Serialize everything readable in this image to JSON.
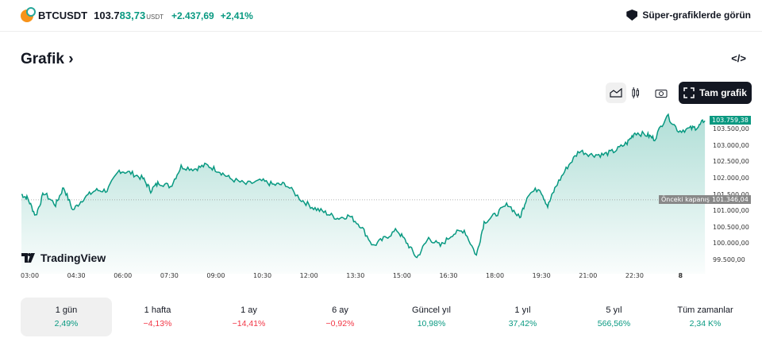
{
  "header": {
    "symbol": "BTCUSDT",
    "price_prefix": "103.7",
    "price_suffix": "83,73",
    "currency": "USDT",
    "change_abs": "+2.437,69",
    "change_pct": "+2,41%",
    "super_charts": "Süper-grafiklerde görün"
  },
  "section": {
    "title": "Grafik",
    "chevron": "›",
    "embed": "</>"
  },
  "toolbar": {
    "full_chart": "Tam grafik"
  },
  "chart_data": {
    "type": "area",
    "color": "#089981",
    "x_ticks": [
      "03:00",
      "04:30",
      "06:00",
      "07:30",
      "09:00",
      "10:30",
      "12:00",
      "13:30",
      "15:00",
      "16:30",
      "18:00",
      "19:30",
      "21:00",
      "22:30",
      "8"
    ],
    "y_ticks": [
      "103.500,00",
      "103.000,00",
      "102.500,00",
      "102.000,00",
      "101.500,00",
      "101.000,00",
      "100.500,00",
      "100.000,00",
      "99.500,00"
    ],
    "y_tick_values": [
      103500,
      103000,
      102500,
      102000,
      101500,
      101000,
      100500,
      100000,
      99500
    ],
    "ylim": [
      99350,
      104000
    ],
    "last_price_label": "103.759,38",
    "last_price": 103759.38,
    "prev_close_label": "Önceki kapanış",
    "prev_close_value": "101.346,04",
    "prev_close": 101346.04,
    "hours_since_0300": [
      -0.23,
      -0.03,
      0.23,
      0.49,
      0.87,
      1.13,
      1.43,
      1.77,
      2.15,
      2.53,
      2.92,
      3.3,
      3.69,
      3.94,
      4.2,
      4.58,
      4.92,
      5.35,
      5.73,
      6.12,
      6.5,
      7.01,
      7.52,
      7.91,
      8.29,
      8.8,
      9.19,
      9.57,
      9.96,
      10.34,
      10.72,
      11.11,
      11.49,
      11.88,
      12.18,
      12.52,
      12.9,
      13.28,
      13.67,
      14.05,
      14.44,
      14.69,
      15.08,
      15.46,
      15.84,
      16.1,
      16.48,
      16.74,
      17.0,
      17.38,
      17.76,
      18.15,
      18.53,
      18.91,
      19.3,
      19.55,
      19.94,
      20.19,
      20.58,
      20.96,
      21.35,
      21.6,
      21.81
    ],
    "prices": [
      101512,
      101391,
      100858,
      101561,
      101197,
      101730,
      101027,
      101391,
      101634,
      101634,
      102240,
      102167,
      101997,
      101634,
      101876,
      101755,
      102361,
      102288,
      102409,
      102240,
      101997,
      101827,
      101924,
      101803,
      101827,
      101343,
      101100,
      100955,
      100785,
      100858,
      100543,
      99937,
      100179,
      100421,
      100058,
      99573,
      100179,
      99937,
      100300,
      100421,
      99646,
      100664,
      100906,
      101221,
      100785,
      101512,
      101706,
      101149,
      101755,
      102361,
      102846,
      102724,
      102724,
      102846,
      103088,
      103403,
      103330,
      103209,
      103937,
      103452,
      103524,
      103573,
      103815
    ]
  },
  "branding": "TradingView",
  "periods": [
    {
      "label": "1 gün",
      "value": "2,49%",
      "dir": "pos"
    },
    {
      "label": "1 hafta",
      "value": "−4,13%",
      "dir": "neg"
    },
    {
      "label": "1 ay",
      "value": "−14,41%",
      "dir": "neg"
    },
    {
      "label": "6 ay",
      "value": "−0,92%",
      "dir": "neg"
    },
    {
      "label": "Güncel yıl",
      "value": "10,98%",
      "dir": "pos"
    },
    {
      "label": "1 yıl",
      "value": "37,42%",
      "dir": "pos"
    },
    {
      "label": "5 yıl",
      "value": "566,56%",
      "dir": "pos"
    },
    {
      "label": "Tüm zamanlar",
      "value": "2,34 K%",
      "dir": "pos"
    }
  ]
}
